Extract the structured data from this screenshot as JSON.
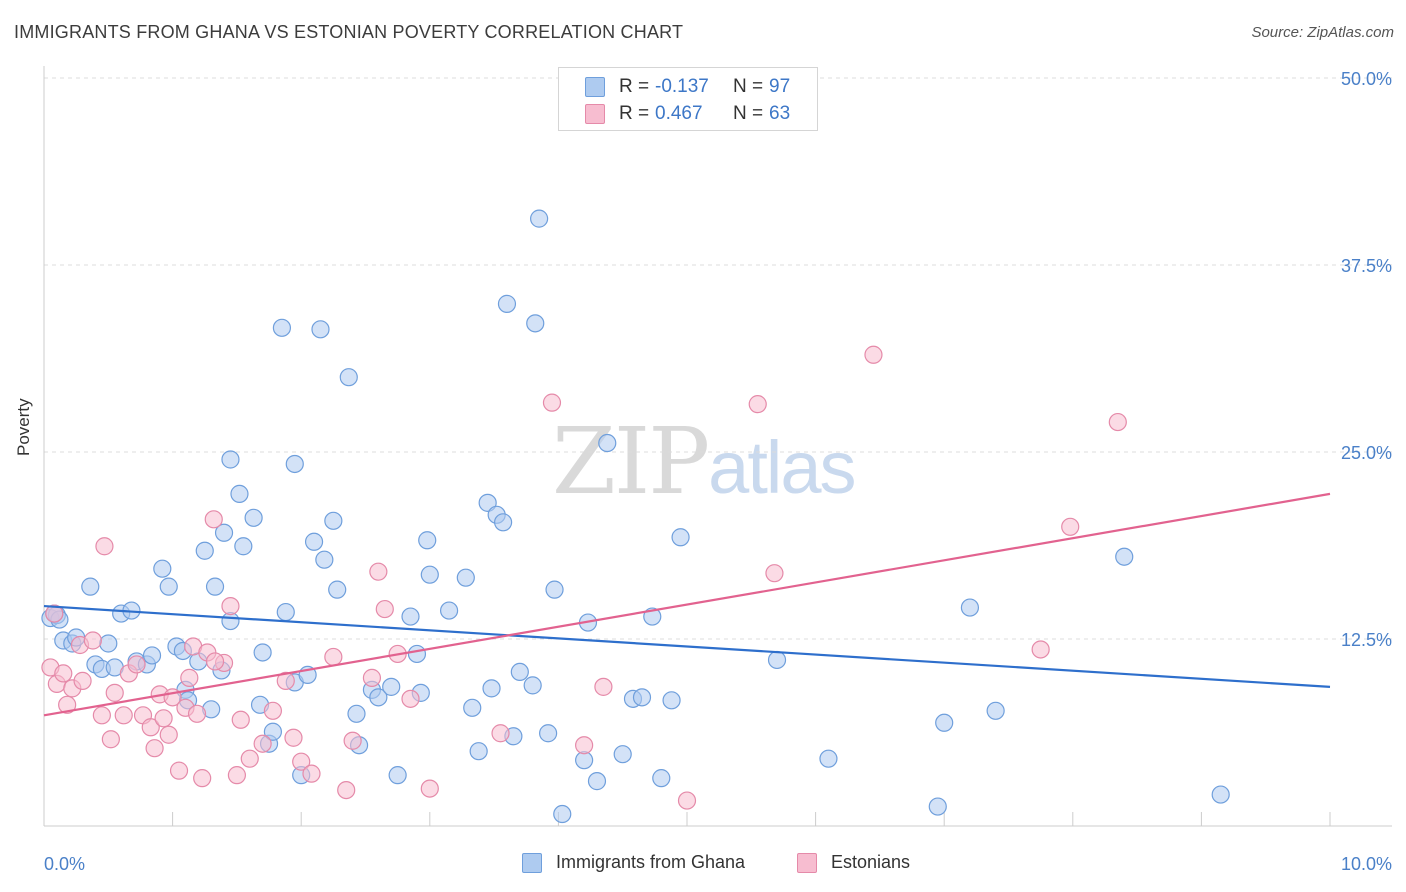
{
  "title": "IMMIGRANTS FROM GHANA VS ESTONIAN POVERTY CORRELATION CHART",
  "source": "Source: ZipAtlas.com",
  "watermark": {
    "zip": "ZIP",
    "atlas": "atlas"
  },
  "colors": {
    "blue_fill": "#aecbf0",
    "blue_stroke": "#6f9fdc",
    "blue_line": "#2e6fcc",
    "pink_fill": "#f7bdd0",
    "pink_stroke": "#e58aa9",
    "pink_line": "#e2628f",
    "tick_text": "#4a80c8",
    "grid": "#dcdcdc"
  },
  "legend": {
    "rows": [
      {
        "r_label": "R =",
        "r_value": "-0.137",
        "n_label": "N =",
        "n_value": "97"
      },
      {
        "r_label": "R =",
        "r_value": "0.467",
        "n_label": "N =",
        "n_value": "63"
      }
    ]
  },
  "bottom_legend": [
    "Immigrants from Ghana",
    "Estonians"
  ],
  "chart_data": {
    "type": "scatter",
    "title": "IMMIGRANTS FROM GHANA VS ESTONIAN POVERTY CORRELATION CHART",
    "xlabel": "",
    "ylabel": "Poverty",
    "xlim": [
      0,
      10
    ],
    "ylim": [
      0,
      50
    ],
    "x_tick_labels": [
      "0.0%",
      "10.0%"
    ],
    "y_ticks": [
      12.5,
      25.0,
      37.5,
      50.0
    ],
    "y_tick_labels": [
      "12.5%",
      "25.0%",
      "37.5%",
      "50.0%"
    ],
    "grid": true,
    "legend_position": "top-center",
    "series": [
      {
        "name": "Immigrants from Ghana",
        "color": "#aecbf0",
        "trend": {
          "x": [
            0,
            10
          ],
          "y": [
            14.7,
            9.3
          ]
        },
        "points": [
          [
            0.05,
            13.9
          ],
          [
            0.1,
            14.1
          ],
          [
            0.12,
            13.8
          ],
          [
            0.15,
            12.4
          ],
          [
            0.22,
            12.2
          ],
          [
            0.25,
            12.6
          ],
          [
            0.36,
            16.0
          ],
          [
            0.4,
            10.8
          ],
          [
            0.45,
            10.5
          ],
          [
            0.5,
            12.2
          ],
          [
            0.55,
            10.6
          ],
          [
            0.6,
            14.2
          ],
          [
            0.68,
            14.4
          ],
          [
            0.72,
            11.0
          ],
          [
            0.8,
            10.8
          ],
          [
            0.84,
            11.4
          ],
          [
            0.92,
            17.2
          ],
          [
            0.97,
            16.0
          ],
          [
            1.03,
            12.0
          ],
          [
            1.08,
            11.7
          ],
          [
            1.1,
            9.1
          ],
          [
            1.12,
            8.4
          ],
          [
            1.2,
            11.0
          ],
          [
            1.25,
            18.4
          ],
          [
            1.3,
            7.8
          ],
          [
            1.33,
            16.0
          ],
          [
            1.38,
            10.4
          ],
          [
            1.4,
            19.6
          ],
          [
            1.45,
            13.7
          ],
          [
            1.52,
            22.2
          ],
          [
            1.55,
            18.7
          ],
          [
            1.63,
            20.6
          ],
          [
            1.68,
            8.1
          ],
          [
            1.7,
            11.6
          ],
          [
            1.75,
            5.5
          ],
          [
            1.78,
            6.3
          ],
          [
            1.85,
            33.3
          ],
          [
            1.88,
            14.3
          ],
          [
            1.95,
            9.6
          ],
          [
            1.95,
            24.2
          ],
          [
            2.0,
            3.4
          ],
          [
            2.05,
            10.1
          ],
          [
            2.1,
            19.0
          ],
          [
            2.15,
            33.2
          ],
          [
            2.18,
            17.8
          ],
          [
            2.25,
            20.4
          ],
          [
            2.28,
            15.8
          ],
          [
            2.37,
            30.0
          ],
          [
            2.43,
            7.5
          ],
          [
            2.45,
            5.4
          ],
          [
            2.55,
            9.1
          ],
          [
            2.6,
            8.6
          ],
          [
            2.7,
            9.3
          ],
          [
            2.75,
            3.4
          ],
          [
            2.85,
            14.0
          ],
          [
            2.9,
            11.5
          ],
          [
            2.93,
            8.9
          ],
          [
            2.98,
            19.1
          ],
          [
            3.0,
            16.8
          ],
          [
            3.15,
            14.4
          ],
          [
            3.28,
            16.6
          ],
          [
            3.33,
            7.9
          ],
          [
            3.38,
            5.0
          ],
          [
            3.45,
            21.6
          ],
          [
            3.48,
            9.2
          ],
          [
            3.52,
            20.8
          ],
          [
            3.57,
            20.3
          ],
          [
            3.6,
            34.9
          ],
          [
            3.65,
            6.0
          ],
          [
            3.7,
            10.3
          ],
          [
            3.8,
            9.4
          ],
          [
            3.82,
            33.6
          ],
          [
            3.85,
            40.6
          ],
          [
            3.92,
            6.2
          ],
          [
            3.97,
            15.8
          ],
          [
            4.03,
            0.8
          ],
          [
            4.2,
            4.4
          ],
          [
            4.23,
            13.6
          ],
          [
            4.3,
            3.0
          ],
          [
            4.38,
            25.6
          ],
          [
            4.5,
            4.8
          ],
          [
            4.58,
            8.5
          ],
          [
            4.65,
            8.6
          ],
          [
            4.73,
            14.0
          ],
          [
            4.8,
            3.2
          ],
          [
            4.88,
            8.4
          ],
          [
            4.95,
            19.3
          ],
          [
            5.7,
            11.1
          ],
          [
            6.1,
            4.5
          ],
          [
            6.95,
            1.3
          ],
          [
            7.0,
            6.9
          ],
          [
            7.2,
            14.6
          ],
          [
            7.4,
            7.7
          ],
          [
            8.4,
            18.0
          ],
          [
            9.15,
            2.1
          ],
          [
            0.08,
            14.2
          ],
          [
            1.45,
            24.5
          ]
        ]
      },
      {
        "name": "Estonians",
        "color": "#f7bdd0",
        "trend": {
          "x": [
            0,
            10
          ],
          "y": [
            7.4,
            22.2
          ]
        },
        "points": [
          [
            0.05,
            10.6
          ],
          [
            0.08,
            14.2
          ],
          [
            0.1,
            9.5
          ],
          [
            0.15,
            10.2
          ],
          [
            0.18,
            8.1
          ],
          [
            0.22,
            9.2
          ],
          [
            0.28,
            12.1
          ],
          [
            0.3,
            9.7
          ],
          [
            0.38,
            12.4
          ],
          [
            0.45,
            7.4
          ],
          [
            0.47,
            18.7
          ],
          [
            0.52,
            5.8
          ],
          [
            0.55,
            8.9
          ],
          [
            0.62,
            7.4
          ],
          [
            0.66,
            10.2
          ],
          [
            0.72,
            10.8
          ],
          [
            0.77,
            7.4
          ],
          [
            0.83,
            6.6
          ],
          [
            0.86,
            5.2
          ],
          [
            0.9,
            8.8
          ],
          [
            0.93,
            7.2
          ],
          [
            0.97,
            6.1
          ],
          [
            1.0,
            8.6
          ],
          [
            1.05,
            3.7
          ],
          [
            1.1,
            7.9
          ],
          [
            1.13,
            9.9
          ],
          [
            1.16,
            12.0
          ],
          [
            1.19,
            7.5
          ],
          [
            1.23,
            3.2
          ],
          [
            1.27,
            11.6
          ],
          [
            1.32,
            20.5
          ],
          [
            1.4,
            10.9
          ],
          [
            1.45,
            14.7
          ],
          [
            1.5,
            3.4
          ],
          [
            1.53,
            7.1
          ],
          [
            1.6,
            4.5
          ],
          [
            1.7,
            5.5
          ],
          [
            1.78,
            7.7
          ],
          [
            1.88,
            9.7
          ],
          [
            1.94,
            5.9
          ],
          [
            2.0,
            4.3
          ],
          [
            2.08,
            3.5
          ],
          [
            2.25,
            11.3
          ],
          [
            2.35,
            2.4
          ],
          [
            2.4,
            5.7
          ],
          [
            2.55,
            9.9
          ],
          [
            2.6,
            17.0
          ],
          [
            2.65,
            14.5
          ],
          [
            2.75,
            11.5
          ],
          [
            2.85,
            8.5
          ],
          [
            3.0,
            2.5
          ],
          [
            3.55,
            6.2
          ],
          [
            3.95,
            28.3
          ],
          [
            4.2,
            5.4
          ],
          [
            4.35,
            9.3
          ],
          [
            5.0,
            1.7
          ],
          [
            5.55,
            28.2
          ],
          [
            5.68,
            16.9
          ],
          [
            6.45,
            31.5
          ],
          [
            7.75,
            11.8
          ],
          [
            7.98,
            20.0
          ],
          [
            8.35,
            27.0
          ],
          [
            1.33,
            11.0
          ]
        ]
      }
    ]
  }
}
